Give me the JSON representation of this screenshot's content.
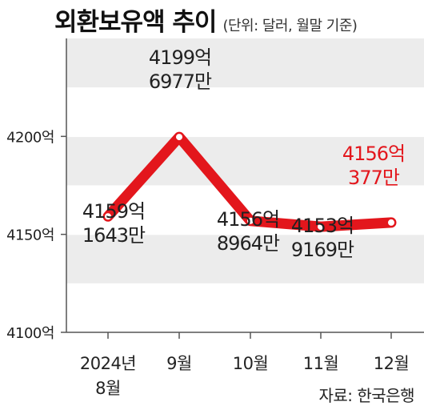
{
  "header": {
    "title": "외환보유액 추이",
    "unit": "(단위: 달러, 월말 기준)"
  },
  "source": "자료: 한국은행",
  "colors": {
    "line": "#e3161c",
    "highlight_text": "#e3161c",
    "band": "#ececec",
    "grid": "#ffffff",
    "text": "#222222"
  },
  "chart_data": {
    "type": "line",
    "title": "외환보유액 추이",
    "categories": [
      "2024년 8월",
      "9월",
      "10월",
      "11월",
      "12월"
    ],
    "x_tick_labels": [
      [
        "2024년",
        "8월"
      ],
      [
        "9월"
      ],
      [
        "10월"
      ],
      [
        "11월"
      ],
      [
        "12월"
      ]
    ],
    "values": [
      4159.1643,
      4199.6977,
      4156.8964,
      4153.9169,
      4156.0377
    ],
    "data_labels": [
      [
        "4159억",
        "1643만"
      ],
      [
        "4199억",
        "6977만"
      ],
      [
        "4156억",
        "8964만"
      ],
      [
        "4153억",
        "9169만"
      ],
      [
        "4156억",
        "377만"
      ]
    ],
    "highlight_index": 4,
    "y_ticks": [
      4100,
      4150,
      4200
    ],
    "y_tick_labels": [
      "4100억",
      "4150억",
      "4200억"
    ],
    "ylim": [
      4100,
      4250
    ],
    "grid": true,
    "legend": "none"
  }
}
